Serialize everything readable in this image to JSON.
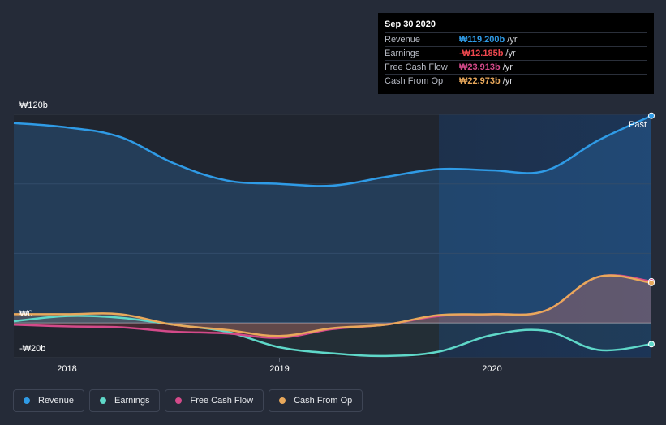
{
  "tooltip": {
    "date": "Sep 30 2020",
    "rows": [
      {
        "label": "Revenue",
        "value": "₩119.200b",
        "unit": "/yr",
        "color": "#2f9be6"
      },
      {
        "label": "Earnings",
        "value": "-₩12.185b",
        "unit": "/yr",
        "color": "#f0484f"
      },
      {
        "label": "Free Cash Flow",
        "value": "₩23.913b",
        "unit": "/yr",
        "color": "#d44a8a"
      },
      {
        "label": "Cash From Op",
        "value": "₩22.973b",
        "unit": "/yr",
        "color": "#e8a85b"
      }
    ]
  },
  "legend": [
    {
      "label": "Revenue",
      "color": "#2f9be6"
    },
    {
      "label": "Earnings",
      "color": "#5fd8c9"
    },
    {
      "label": "Free Cash Flow",
      "color": "#d44a8a"
    },
    {
      "label": "Cash From Op",
      "color": "#e8a85b"
    }
  ],
  "chart_data": {
    "type": "line",
    "title": "",
    "past_label": "Past",
    "y_tick_labels": {
      "top": "₩120b",
      "zero": "₩0",
      "bottom": "-₩20b"
    },
    "ylim": [
      -20,
      120
    ],
    "xlim": [
      2017.75,
      2020.75
    ],
    "x_ticks": [
      2018,
      2019,
      2020
    ],
    "x_tick_labels": [
      "2018",
      "2019",
      "2020"
    ],
    "forecast_start": 2019.75,
    "series": [
      {
        "name": "Revenue",
        "color": "#2f9be6",
        "points": [
          [
            2017.75,
            115
          ],
          [
            2018,
            112.5
          ],
          [
            2018.25,
            107
          ],
          [
            2018.5,
            92
          ],
          [
            2018.75,
            82
          ],
          [
            2019,
            80
          ],
          [
            2019.25,
            79
          ],
          [
            2019.5,
            84
          ],
          [
            2019.75,
            88.5
          ],
          [
            2020,
            87.8
          ],
          [
            2020.25,
            87.5
          ],
          [
            2020.5,
            105
          ],
          [
            2020.75,
            119.2
          ]
        ]
      },
      {
        "name": "Earnings",
        "color": "#5fd8c9",
        "points": [
          [
            2017.75,
            1
          ],
          [
            2018,
            4
          ],
          [
            2018.25,
            3
          ],
          [
            2018.5,
            -1
          ],
          [
            2018.75,
            -5
          ],
          [
            2019,
            -14
          ],
          [
            2019.25,
            -17.5
          ],
          [
            2019.5,
            -19
          ],
          [
            2019.75,
            -16.5
          ],
          [
            2020,
            -7
          ],
          [
            2020.25,
            -4.5
          ],
          [
            2020.5,
            -15.5
          ],
          [
            2020.75,
            -12.185
          ]
        ]
      },
      {
        "name": "Free Cash Flow",
        "color": "#d44a8a",
        "points": [
          [
            2017.75,
            -1
          ],
          [
            2018,
            -2
          ],
          [
            2018.25,
            -2.5
          ],
          [
            2018.5,
            -5
          ],
          [
            2018.75,
            -6
          ],
          [
            2019,
            -8.5
          ],
          [
            2019.25,
            -3.5
          ],
          [
            2019.5,
            -1
          ],
          [
            2019.75,
            4
          ],
          [
            2020,
            5
          ],
          [
            2020.25,
            7
          ],
          [
            2020.5,
            26.5
          ],
          [
            2020.75,
            23.913
          ]
        ]
      },
      {
        "name": "Cash From Op",
        "color": "#e8a85b",
        "points": [
          [
            2017.75,
            5
          ],
          [
            2018,
            5
          ],
          [
            2018.25,
            5
          ],
          [
            2018.5,
            -1
          ],
          [
            2018.75,
            -4
          ],
          [
            2019,
            -7.5
          ],
          [
            2019.25,
            -3
          ],
          [
            2019.5,
            -1
          ],
          [
            2019.75,
            4.5
          ],
          [
            2020,
            5
          ],
          [
            2020.25,
            7
          ],
          [
            2020.5,
            26.5
          ],
          [
            2020.75,
            22.973
          ]
        ]
      }
    ]
  }
}
